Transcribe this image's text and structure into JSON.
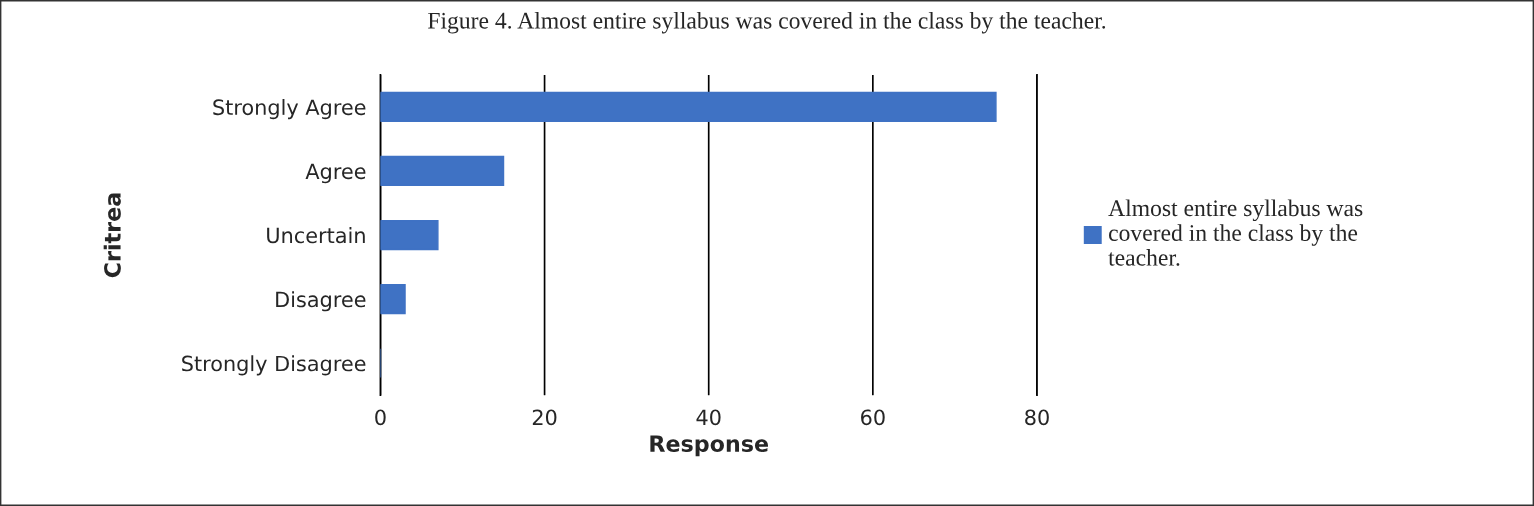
{
  "chart_data": {
    "type": "bar",
    "orientation": "horizontal",
    "title": "Figure 4. Almost entire syllabus was covered in the class by the teacher.",
    "xlabel": "Response",
    "ylabel": "Critrea",
    "categories": [
      "Strongly Agree",
      "Agree",
      "Uncertain",
      "Disagree",
      "Strongly Disagree"
    ],
    "series": [
      {
        "name": "Almost entire syllabus was covered in the class by the teacher.",
        "color": "#3f72c4",
        "values": [
          75,
          15,
          7,
          3,
          0
        ]
      }
    ],
    "xlim": [
      0,
      80
    ],
    "xticks": [
      0,
      20,
      40,
      60,
      80
    ],
    "grid": "x",
    "legend": "right"
  }
}
